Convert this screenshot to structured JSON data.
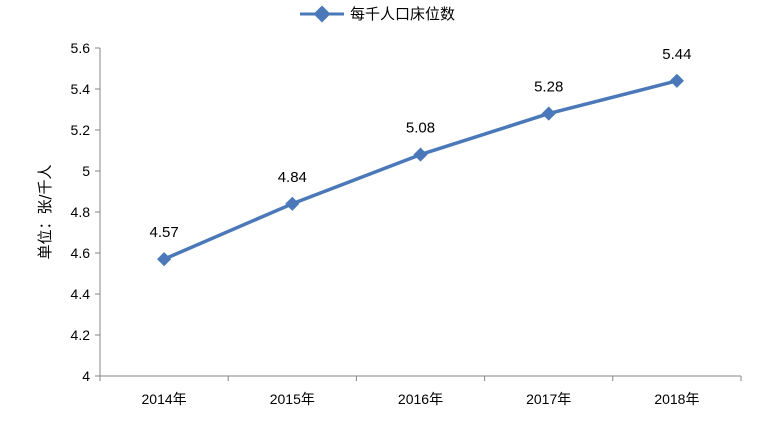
{
  "chart_data": {
    "type": "line",
    "categories": [
      "2014年",
      "2015年",
      "2016年",
      "2017年",
      "2018年"
    ],
    "series": [
      {
        "name": "每千人口床位数",
        "values": [
          4.57,
          4.84,
          5.08,
          5.28,
          5.44
        ],
        "color": "#4a78b8"
      }
    ],
    "data_labels": [
      "4.57",
      "4.84",
      "5.08",
      "5.28",
      "5.44"
    ],
    "ylabel": "单位：张/千人",
    "ylim": [
      4,
      5.6
    ],
    "yticks": [
      4,
      4.2,
      4.4,
      4.6,
      4.8,
      5,
      5.2,
      5.4,
      5.6
    ],
    "ytick_labels": [
      "4",
      "4.2",
      "4.4",
      "4.6",
      "4.8",
      "5",
      "5.2",
      "5.4",
      "5.6"
    ],
    "grid": false,
    "legend_position": "top-center",
    "marker": "diamond"
  }
}
